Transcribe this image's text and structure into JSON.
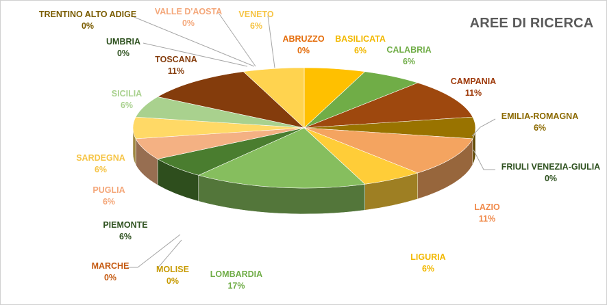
{
  "chart_data": {
    "type": "pie",
    "title": "AREE DI RICERCA",
    "slices": [
      {
        "label": "ABRUZZO",
        "value": 0,
        "display": "0%",
        "color": "#E46C0A"
      },
      {
        "label": "BASILICATA",
        "value": 6,
        "display": "6%",
        "color": "#FFC000"
      },
      {
        "label": "CALABRIA",
        "value": 6,
        "display": "6%",
        "color": "#70AD47"
      },
      {
        "label": "CAMPANIA",
        "value": 11,
        "display": "11%",
        "color": "#9E480E"
      },
      {
        "label": "EMILIA-ROMAGNA",
        "value": 6,
        "display": "6%",
        "color": "#997300"
      },
      {
        "label": "FRIULI VENEZIA-GIULIA",
        "value": 0,
        "display": "0%",
        "color": "#375623"
      },
      {
        "label": "LAZIO",
        "value": 11,
        "display": "11%",
        "color": "#F4A460"
      },
      {
        "label": "LIGURIA",
        "value": 6,
        "display": "6%",
        "color": "#FFCD38"
      },
      {
        "label": "LOMBARDIA",
        "value": 17,
        "display": "17%",
        "color": "#86BE5E"
      },
      {
        "label": "MOLISE",
        "value": 0,
        "display": "0%",
        "color": "#C79A00"
      },
      {
        "label": "MARCHE",
        "value": 0,
        "display": "0%",
        "color": "#C55A11"
      },
      {
        "label": "PIEMONTE",
        "value": 6,
        "display": "6%",
        "color": "#4A7D2F"
      },
      {
        "label": "PUGLIA",
        "value": 6,
        "display": "6%",
        "color": "#F4B183"
      },
      {
        "label": "SARDEGNA",
        "value": 6,
        "display": "6%",
        "color": "#FFD966"
      },
      {
        "label": "SICILIA",
        "value": 6,
        "display": "6%",
        "color": "#A9D18E"
      },
      {
        "label": "TOSCANA",
        "value": 11,
        "display": "11%",
        "color": "#843C0C"
      },
      {
        "label": "UMBRIA",
        "value": 0,
        "display": "0%",
        "color": "#385723"
      },
      {
        "label": "TRENTINO ALTO ADIGE",
        "value": 0,
        "display": "0%",
        "color": "#806000"
      },
      {
        "label": "VALLE D'AOSTA",
        "value": 0,
        "display": "0%",
        "color": "#F4B183"
      },
      {
        "label": "VENETO",
        "value": 6,
        "display": "6%",
        "color": "#FFD34F"
      }
    ],
    "legend": "none",
    "style": "3d-exploded-pie"
  }
}
